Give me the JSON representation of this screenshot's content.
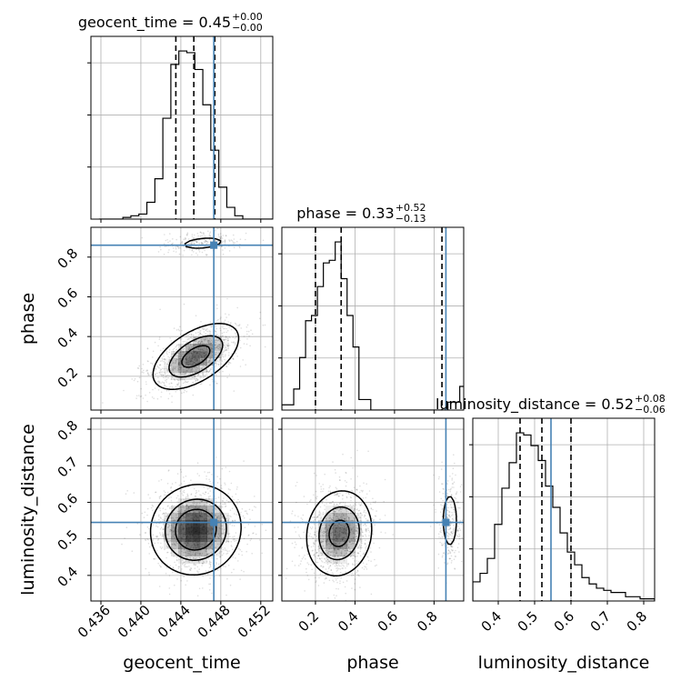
{
  "chart_data": {
    "type": "corner",
    "parameters": [
      "geocent_time",
      "phase",
      "luminosity_distance"
    ],
    "injection_color": "#4682b4",
    "grid": true,
    "marginals": [
      {
        "name": "geocent_time",
        "title_main": "geocent_time = 0.45",
        "title_sup": "+0.00",
        "title_sub": "−0.00",
        "range": [
          0.435,
          0.4532
        ],
        "quantiles": [
          0.4435,
          0.4453,
          0.4474
        ],
        "injection": 0.4473,
        "hist_edges_start": 0.4358,
        "hist_bin_width": 0.0008,
        "hist_values": [
          0,
          0,
          0,
          1,
          2,
          3,
          10,
          24,
          60,
          92,
          100,
          99,
          89,
          68,
          41,
          19,
          7,
          2,
          0,
          0,
          0,
          0
        ],
        "xticks": [
          "0.436",
          "0.440",
          "0.444",
          "0.448",
          "0.452"
        ],
        "xtick_values": [
          0.436,
          0.44,
          0.444,
          0.448,
          0.452
        ]
      },
      {
        "name": "phase",
        "title_main": "phase = 0.33",
        "title_sup": "+0.52",
        "title_sub": "−0.13",
        "range": [
          0.03,
          0.95
        ],
        "quantiles": [
          0.2,
          0.33,
          0.84
        ],
        "injection": 0.86,
        "hist_edges_start": 0.03,
        "hist_bin_width": 0.03,
        "hist_values": [
          2,
          2,
          8,
          20,
          34,
          36,
          47,
          56,
          57,
          64,
          50,
          36,
          24,
          4,
          4,
          0,
          0,
          0,
          0,
          0,
          0,
          0,
          0,
          0,
          0,
          0,
          0,
          0,
          3,
          3,
          9,
          16,
          28,
          41,
          53
        ],
        "xticks": [
          "0.2",
          "0.4",
          "0.6",
          "0.8"
        ],
        "xtick_values": [
          0.2,
          0.4,
          0.6,
          0.8
        ]
      },
      {
        "name": "luminosity_distance",
        "title_main": "luminosity_distance = 0.52",
        "title_sup": "+0.08",
        "title_sub": "−0.06",
        "range": [
          0.33,
          0.83
        ],
        "quantiles": [
          0.46,
          0.52,
          0.6
        ],
        "injection": 0.545,
        "hist_edges_start": 0.33,
        "hist_bin_width": 0.02,
        "hist_values": [
          9,
          13,
          20,
          36,
          53,
          65,
          79,
          78,
          73,
          66,
          54,
          44,
          32,
          23,
          17,
          11,
          8,
          6,
          5,
          4,
          4,
          2,
          2,
          1,
          1
        ],
        "xticks": [
          "0.4",
          "0.5",
          "0.6",
          "0.7",
          "0.8"
        ],
        "xtick_values": [
          0.4,
          0.5,
          0.6,
          0.7,
          0.8
        ]
      }
    ],
    "joint": [
      {
        "name": "geocent_time-vs-phase",
        "x": "geocent_time",
        "y": "phase",
        "y_ticks": [
          "0.2",
          "0.4",
          "0.6",
          "0.8"
        ],
        "y_tick_values": [
          0.2,
          0.4,
          0.6,
          0.8
        ],
        "modes": [
          {
            "cx": 0.4455,
            "cy": 0.3,
            "sx": 0.0022,
            "sy": 0.085,
            "rho": 0.55,
            "weight": 0.8
          },
          {
            "cx": 0.4462,
            "cy": 0.87,
            "sx": 0.0018,
            "sy": 0.025,
            "rho": 0.3,
            "weight": 0.2
          }
        ]
      },
      {
        "name": "geocent_time-vs-luminosity_distance",
        "x": "geocent_time",
        "y": "luminosity_distance",
        "y_ticks": [
          "0.4",
          "0.5",
          "0.6",
          "0.7",
          "0.8"
        ],
        "y_tick_values": [
          0.4,
          0.5,
          0.6,
          0.7,
          0.8
        ],
        "modes": [
          {
            "cx": 0.4455,
            "cy": 0.525,
            "sx": 0.0022,
            "sy": 0.06,
            "rho": 0.05,
            "weight": 1.0
          }
        ]
      },
      {
        "name": "phase-vs-luminosity_distance",
        "x": "phase",
        "y": "luminosity_distance",
        "modes": [
          {
            "cx": 0.32,
            "cy": 0.515,
            "sx": 0.085,
            "sy": 0.06,
            "rho": 0.1,
            "weight": 0.78
          },
          {
            "cx": 0.88,
            "cy": 0.55,
            "sx": 0.03,
            "sy": 0.06,
            "rho": 0.0,
            "weight": 0.22
          }
        ]
      }
    ]
  }
}
